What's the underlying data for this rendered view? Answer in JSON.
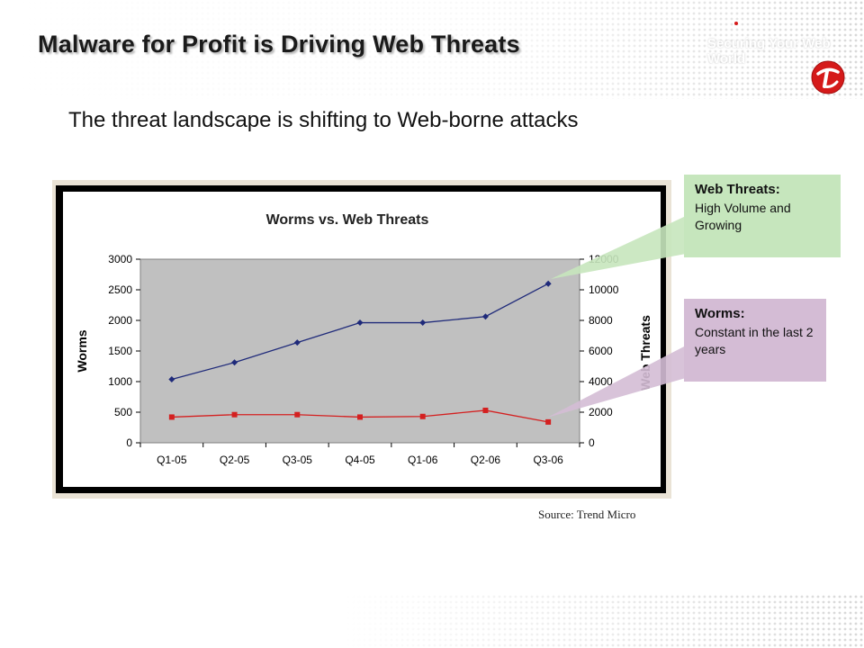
{
  "slide": {
    "title": "Malware for Profit is Driving Web Threats",
    "subtitle": "The threat landscape is shifting to Web-borne attacks",
    "tagline": "Securing Your Web World",
    "source": "Source: Trend Micro"
  },
  "callouts": {
    "web": {
      "title": "Web Threats:",
      "body": "High Volume and Growing",
      "color": "#c6e6bd"
    },
    "worms": {
      "title": "Worms:",
      "body": "Constant in the last 2 years",
      "color": "#d4bcd5"
    }
  },
  "colors": {
    "web_series": "#1f2a7a",
    "worms_series": "#d42020",
    "plot_bg": "#c0c0c0",
    "logo": "#d51a1a"
  },
  "icons": {
    "logo": "trend-micro-logo-icon"
  },
  "chart_data": {
    "type": "line",
    "title": "Worms vs. Web Threats",
    "categories": [
      "Q1-05",
      "Q2-05",
      "Q3-05",
      "Q4-05",
      "Q1-06",
      "Q2-06",
      "Q3-06"
    ],
    "ylabel_left": "Worms",
    "ylabel_right": "Web Threats",
    "ylim_left": [
      0,
      3000
    ],
    "ylim_right": [
      0,
      12000
    ],
    "yticks_left": [
      "0",
      "500",
      "1000",
      "1500",
      "2000",
      "2500",
      "3000"
    ],
    "yticks_right": [
      "0",
      "2000",
      "4000",
      "6000",
      "8000",
      "10000",
      "12000"
    ],
    "grid": false,
    "series": [
      {
        "name": "Web Threats",
        "axis": "right",
        "marker": "diamond",
        "color": "#1f2a7a",
        "values": [
          4150,
          5250,
          6550,
          7850,
          7850,
          8250,
          10400
        ]
      },
      {
        "name": "Worms",
        "axis": "left",
        "marker": "square",
        "color": "#d42020",
        "values": [
          420,
          460,
          460,
          420,
          430,
          530,
          340
        ]
      }
    ]
  }
}
